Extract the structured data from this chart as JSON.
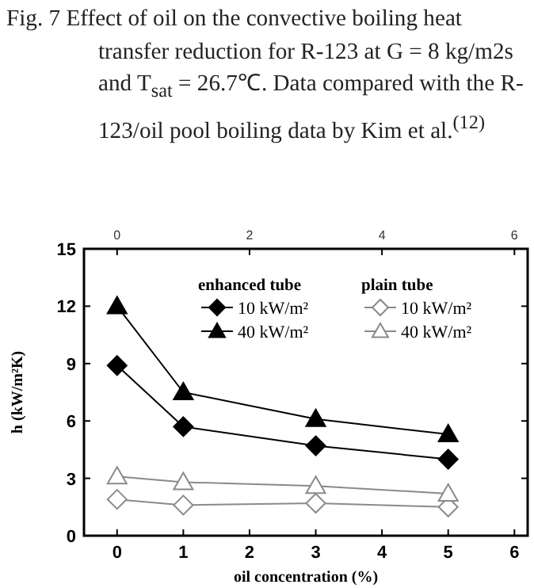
{
  "chart_data": {
    "type": "line",
    "title": "Fig. 7 Effect of oil on the convective boiling heat transfer reduction for R-123 at G = 8 kg/m2s and T$_{sat}$ = 26.7℃. Data compared with the R-123/oil pool boiling data by Kim et al.$^{(12)}$",
    "xlabel": "oil concentration (%)",
    "ylabel": "h (kW/m²K)",
    "x": [
      0,
      1,
      3,
      5
    ],
    "series": [
      {
        "name": "10 kW/m²",
        "color": "#000000",
        "marker": "diamond",
        "values": [
          8.9,
          5.7,
          4.7,
          4.0
        ]
      },
      {
        "name": "40 kW/m²",
        "color": "#000000",
        "marker": "triangle",
        "values": [
          12.0,
          7.5,
          6.1,
          5.3
        ]
      },
      {
        "name": "10 kW/m²",
        "color": "#8a8a8a",
        "marker": "diamond",
        "values": [
          1.9,
          1.6,
          1.7,
          1.5
        ]
      },
      {
        "name": "40 kW/m²",
        "color": "#8a8a8a",
        "marker": "triangle",
        "values": [
          3.1,
          2.8,
          2.6,
          2.2
        ]
      }
    ],
    "annotations": [
      "enhanced tube",
      "plain tube"
    ],
    "xlim": [
      -0.5,
      6.2
    ],
    "xticks": [
      0,
      1,
      2,
      3,
      4,
      5,
      6
    ],
    "x2lim": [
      -0.5,
      6.2
    ],
    "x2ticks": [
      0,
      2,
      4,
      6
    ],
    "ylim": [
      0,
      15
    ],
    "yticks": [
      0,
      3,
      6,
      9,
      12,
      15
    ],
    "legend": "top right",
    "grid": false
  }
}
